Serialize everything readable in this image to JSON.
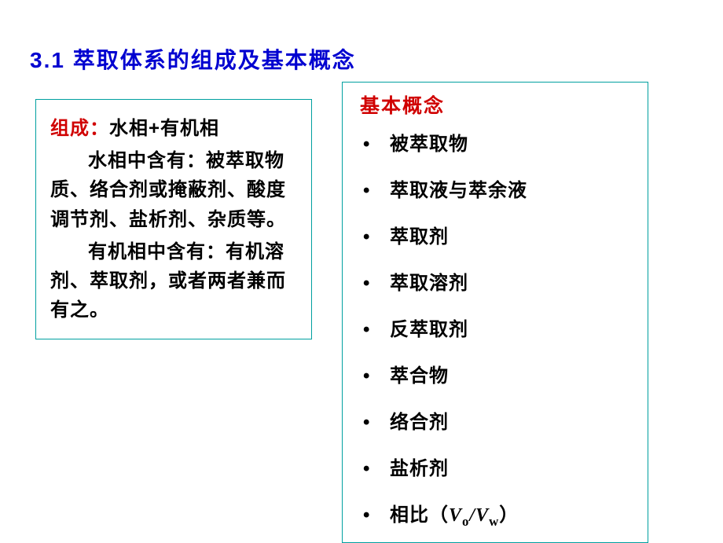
{
  "heading": "3.1 萃取体系的组成及基本概念",
  "leftBox": {
    "titleRed": "组成：",
    "titleBlack": "水相+有机相",
    "para1": "水相中含有：被萃取物质、络合剂或掩蔽剂、酸度调节剂、盐析剂、杂质等。",
    "para2": "有机相中含有：有机溶剂、萃取剂，或者两者兼而有之。",
    "borderColor": "#00a0a0"
  },
  "rightBox": {
    "title": "基本概念",
    "items": [
      "被萃取物",
      "萃取液与萃余液",
      "萃取剂",
      "萃取溶剂",
      "反萃取剂",
      "萃合物",
      "络合剂",
      "盐析剂"
    ],
    "lastItemPrefix": "相比（",
    "lastItemSuffix": "）",
    "ratioVar1": "V",
    "ratioSub1": "o",
    "ratioSlash": "/",
    "ratioVar2": "V",
    "ratioSub2": "w",
    "borderColor": "#00a0a0"
  },
  "colors": {
    "heading": "#0000d0",
    "red": "#d00000",
    "black": "#000000",
    "boxBorder": "#00a0a0",
    "background": "#ffffff"
  },
  "fonts": {
    "headingSize": 28,
    "bodySize": 24,
    "bodyWeight": "bold"
  }
}
